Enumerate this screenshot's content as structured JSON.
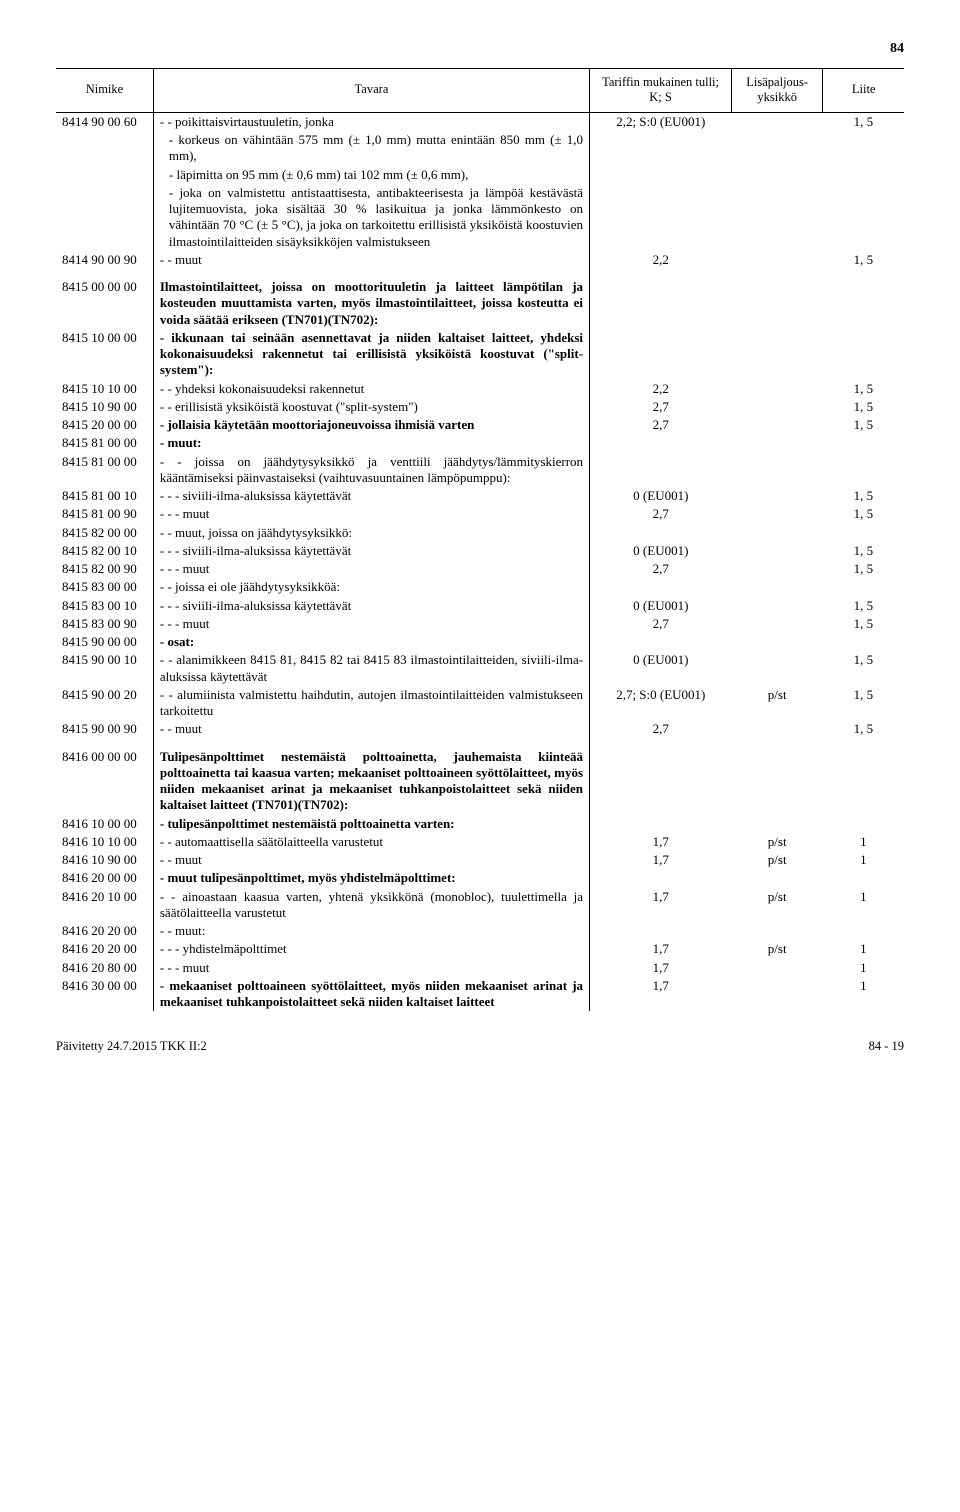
{
  "page_top": "84",
  "headers": {
    "col1": "Nimike",
    "col2": "Tavara",
    "col3a": "Tariffin mukainen tulli;",
    "col3b": "K; S",
    "col4a": "Lisäpaljous-",
    "col4b": "yksikkö",
    "col5": "Liite"
  },
  "rows": [
    {
      "code": "8414 90 00 60",
      "desc": "- - poikittaisvirtaustuuletin, jonka",
      "tariff": "2,2; S:0 (EU001)",
      "unit": "",
      "annex": "1, 5"
    },
    {
      "code": "",
      "desc_cont": "- korkeus on vähintään 575 mm (± 1,0 mm) mutta enintään 850 mm (± 1,0 mm),",
      "tariff": "",
      "unit": "",
      "annex": ""
    },
    {
      "code": "",
      "desc_cont": "- läpimitta on 95 mm (± 0,6 mm) tai 102 mm (± 0,6 mm),",
      "tariff": "",
      "unit": "",
      "annex": ""
    },
    {
      "code": "",
      "desc_cont": "- joka on valmistettu antistaattisesta, antibakteerisesta ja lämpöä kestävästä lujitemuovista, joka sisältää 30 % lasikuitua ja jonka lämmönkesto on vähintään 70 °C (± 5 °C), ja joka on tarkoitettu erillisistä yksiköistä koostuvien ilmastointilaitteiden sisäyksikköjen valmistukseen",
      "tariff": "",
      "unit": "",
      "annex": ""
    },
    {
      "code": "8414 90 00 90",
      "desc": "- - muut",
      "tariff": "2,2",
      "unit": "",
      "annex": "1, 5"
    },
    {
      "spacer": true,
      "code": "8415 00 00 00",
      "desc_bold": "Ilmastointilaitteet, joissa on moottorituuletin ja laitteet lämpötilan ja kosteuden muuttamista varten, myös ilmastointilaitteet, joissa kosteutta ei voida säätää erikseen (TN701)(TN702):",
      "tariff": "",
      "unit": "",
      "annex": ""
    },
    {
      "code": "8415 10 00 00",
      "desc_bold": "- ikkunaan tai seinään asennettavat ja niiden kaltaiset laitteet, yhdeksi kokonaisuudeksi rakennetut tai erillisistä yksiköistä koostuvat (\"split-system\"):",
      "tariff": "",
      "unit": "",
      "annex": ""
    },
    {
      "code": "8415 10 10 00",
      "desc": "- - yhdeksi kokonaisuudeksi rakennetut",
      "tariff": "2,2",
      "unit": "",
      "annex": "1, 5"
    },
    {
      "code": "8415 10 90 00",
      "desc": "- - erillisistä yksiköistä koostuvat (\"split-system\")",
      "tariff": "2,7",
      "unit": "",
      "annex": "1, 5"
    },
    {
      "code": "8415 20 00 00",
      "desc_bold": "- jollaisia käytetään moottoriajoneuvoissa ihmisiä varten",
      "tariff": "2,7",
      "unit": "",
      "annex": "1, 5"
    },
    {
      "code": "8415 81 00 00",
      "desc_bold": "- muut:",
      "tariff": "",
      "unit": "",
      "annex": ""
    },
    {
      "code": "8415 81 00 00",
      "desc": "- - joissa on jäähdytysyksikkö ja venttiili jäähdytys/lämmityskierron kääntämiseksi päinvastaiseksi (vaihtuvasuuntainen lämpöpumppu):",
      "tariff": "",
      "unit": "",
      "annex": ""
    },
    {
      "code": "8415 81 00 10",
      "desc": "- - - siviili-ilma-aluksissa käytettävät",
      "tariff": "0 (EU001)",
      "unit": "",
      "annex": "1, 5"
    },
    {
      "code": "8415 81 00 90",
      "desc": "- - - muut",
      "tariff": "2,7",
      "unit": "",
      "annex": "1, 5"
    },
    {
      "code": "8415 82 00 00",
      "desc": "- - muut, joissa on jäähdytysyksikkö:",
      "tariff": "",
      "unit": "",
      "annex": ""
    },
    {
      "code": "8415 82 00 10",
      "desc": "- - - siviili-ilma-aluksissa käytettävät",
      "tariff": "0 (EU001)",
      "unit": "",
      "annex": "1, 5"
    },
    {
      "code": "8415 82 00 90",
      "desc": "- - - muut",
      "tariff": "2,7",
      "unit": "",
      "annex": "1, 5"
    },
    {
      "code": "8415 83 00 00",
      "desc": "- - joissa ei ole jäähdytysyksikköä:",
      "tariff": "",
      "unit": "",
      "annex": ""
    },
    {
      "code": "8415 83 00 10",
      "desc": "- - - siviili-ilma-aluksissa käytettävät",
      "tariff": "0 (EU001)",
      "unit": "",
      "annex": "1, 5"
    },
    {
      "code": "8415 83 00 90",
      "desc": "- - - muut",
      "tariff": "2,7",
      "unit": "",
      "annex": "1, 5"
    },
    {
      "code": "8415 90 00 00",
      "desc_bold": "- osat:",
      "tariff": "",
      "unit": "",
      "annex": ""
    },
    {
      "code": "8415 90 00 10",
      "desc": "- - alanimikkeen 8415 81, 8415 82 tai 8415 83 ilmastointilaitteiden, siviili-ilma-aluksissa käytettävät",
      "tariff": "0 (EU001)",
      "unit": "",
      "annex": "1, 5"
    },
    {
      "code": "8415 90 00 20",
      "desc": "- - alumiinista valmistettu haihdutin, autojen ilmastointilaitteiden valmistukseen tarkoitettu",
      "tariff": "2,7; S:0 (EU001)",
      "unit": "p/st",
      "annex": "1, 5"
    },
    {
      "code": "8415 90 00 90",
      "desc": "- - muut",
      "tariff": "2,7",
      "unit": "",
      "annex": "1, 5"
    },
    {
      "spacer": true,
      "code": "8416 00 00 00",
      "desc_bold": "Tulipesänpolttimet nestemäistä polttoainetta, jauhemaista kiinteää polttoainetta tai kaasua varten; mekaaniset polttoaineen syöttölaitteet, myös niiden mekaaniset arinat ja mekaaniset tuhkanpoistolaitteet sekä niiden kaltaiset laitteet (TN701)(TN702):",
      "tariff": "",
      "unit": "",
      "annex": ""
    },
    {
      "code": "8416 10 00 00",
      "desc_bold": "- tulipesänpolttimet nestemäistä polttoainetta varten:",
      "tariff": "",
      "unit": "",
      "annex": ""
    },
    {
      "code": "8416 10 10 00",
      "desc": "- - automaattisella säätölaitteella varustetut",
      "tariff": "1,7",
      "unit": "p/st",
      "annex": "1"
    },
    {
      "code": "8416 10 90 00",
      "desc": "- - muut",
      "tariff": "1,7",
      "unit": "p/st",
      "annex": "1"
    },
    {
      "code": "8416 20 00 00",
      "desc_bold": "- muut tulipesänpolttimet, myös yhdistelmäpolttimet:",
      "tariff": "",
      "unit": "",
      "annex": ""
    },
    {
      "code": "8416 20 10 00",
      "desc": "- - ainoastaan kaasua varten, yhtenä yksikkönä (monobloc), tuulettimella ja säätölaitteella varustetut",
      "tariff": "1,7",
      "unit": "p/st",
      "annex": "1"
    },
    {
      "code": "8416 20 20 00",
      "desc": "- - muut:",
      "tariff": "",
      "unit": "",
      "annex": ""
    },
    {
      "code": "8416 20 20 00",
      "desc": "- - - yhdistelmäpolttimet",
      "tariff": "1,7",
      "unit": "p/st",
      "annex": "1"
    },
    {
      "code": "8416 20 80 00",
      "desc": "- - - muut",
      "tariff": "1,7",
      "unit": "",
      "annex": "1"
    },
    {
      "code": "8416 30 00 00",
      "desc_bold": "- mekaaniset polttoaineen syöttölaitteet, myös niiden mekaaniset arinat ja mekaaniset tuhkanpoistolaitteet sekä niiden kaltaiset laitteet",
      "tariff": "1,7",
      "unit": "",
      "annex": "1"
    }
  ],
  "footer_left": "Päivitetty 24.7.2015 TKK II:2",
  "footer_right": "84 - 19"
}
